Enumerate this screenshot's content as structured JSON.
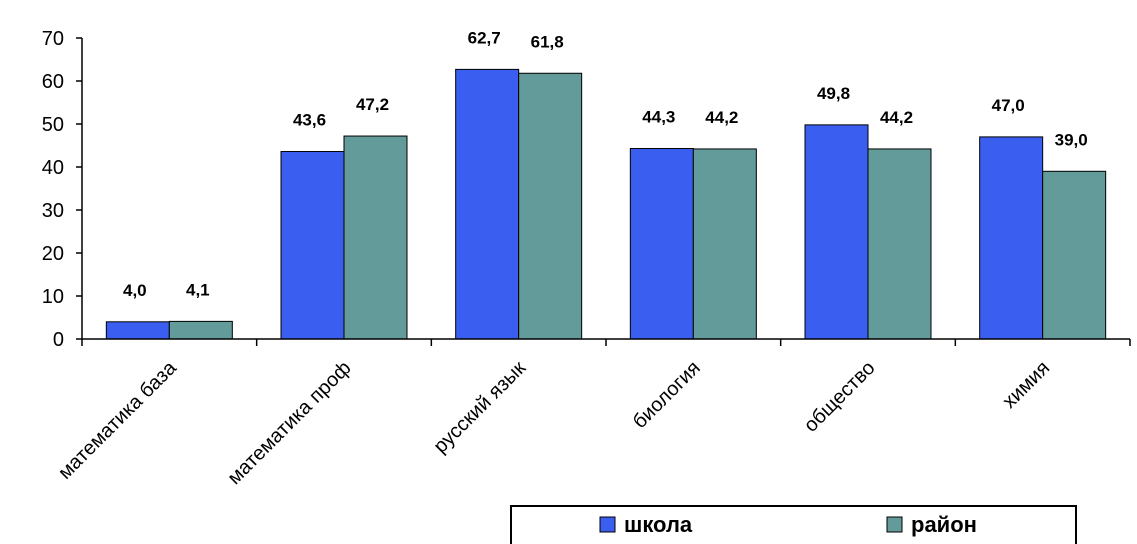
{
  "chart_data": {
    "type": "bar",
    "categories": [
      "математика база",
      "математика проф",
      "русский язык",
      "биология",
      "общество",
      "химия"
    ],
    "series": [
      {
        "name": "школа",
        "values": [
          4.0,
          43.6,
          62.7,
          44.3,
          49.8,
          47.0
        ],
        "labels": [
          "4,0",
          "43,6",
          "62,7",
          "44,3",
          "49,8",
          "47,0"
        ],
        "color": "#3a5ef0"
      },
      {
        "name": "район",
        "values": [
          4.1,
          47.2,
          61.8,
          44.2,
          44.2,
          39.0
        ],
        "labels": [
          "4,1",
          "47,2",
          "61,8",
          "44,2",
          "44,2",
          "39,0"
        ],
        "color": "#639a9a"
      }
    ],
    "ylim": [
      0,
      70
    ],
    "yticks": [
      0,
      10,
      20,
      30,
      40,
      50,
      60,
      70
    ],
    "grid": false,
    "legend_position": "bottom-right"
  }
}
